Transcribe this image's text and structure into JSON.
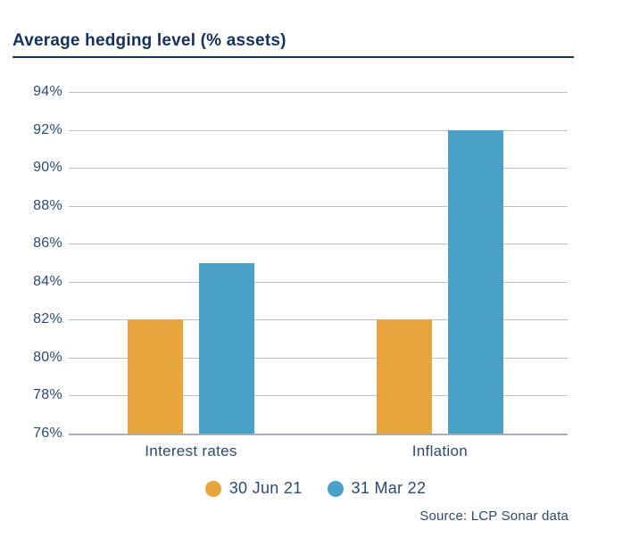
{
  "title": "Average hedging level (% assets)",
  "source": "Source: LCP Sonar data",
  "colors": {
    "navy": "#2B4A70",
    "navy-dark": "#14325B",
    "grid": "#B8C1C8",
    "grid-dark": "#A5ADB5",
    "bg": "#FFFFFF"
  },
  "chart_data": {
    "type": "bar",
    "title": "Average hedging level (% assets)",
    "categories": [
      "Interest rates",
      "Inflation"
    ],
    "series": [
      {
        "name": "30 Jun 21",
        "color": "#E7A53D",
        "values": [
          82,
          82
        ]
      },
      {
        "name": "31 Mar 22",
        "color": "#4BA0C8",
        "values": [
          85,
          92
        ]
      }
    ],
    "ylim": [
      76,
      94
    ],
    "ytick_step": 2,
    "ytick_suffix": "%",
    "grid": true,
    "legend_position": "bottom",
    "annotation": "Source: LCP Sonar data"
  }
}
